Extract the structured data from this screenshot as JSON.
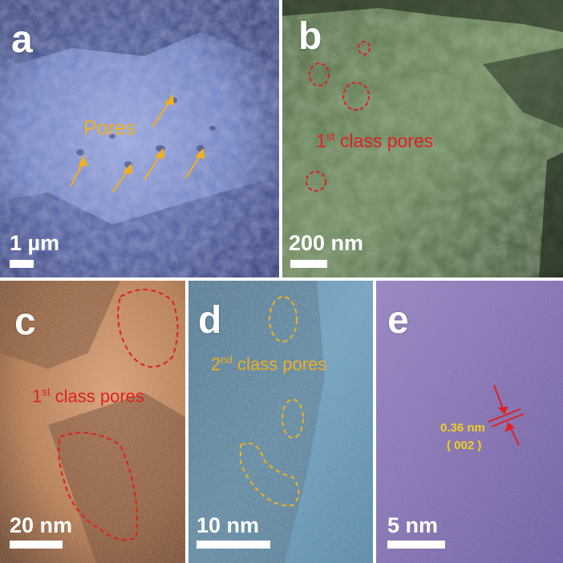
{
  "colors": {
    "sem_blue": "#7f8fc8",
    "tem_green": "#5f7a52",
    "tem_orange": "#c08a62",
    "tem_cyan": "#6b9cb8",
    "tem_purple": "#8a72b6",
    "arrow_orange": "#f0b020",
    "pore_red": "#e02020",
    "label_yellow": "#f0d020"
  },
  "panels": {
    "a": {
      "letter": "a",
      "annotation": "Pores",
      "scale": "1 µm"
    },
    "b": {
      "letter": "b",
      "annotation_pre": "1",
      "annotation_sup": "st",
      "annotation_post": " class pores",
      "scale": "200 nm"
    },
    "c": {
      "letter": "c",
      "annotation_pre": "1",
      "annotation_sup": "st",
      "annotation_post": " class pores",
      "scale": "20 nm"
    },
    "d": {
      "letter": "d",
      "annotation_pre": "2",
      "annotation_sup": "nd",
      "annotation_post": " class pores",
      "scale": "10 nm"
    },
    "e": {
      "letter": "e",
      "spacing": "0.36 nm",
      "plane": "( 002 )",
      "scale": "5 nm"
    }
  }
}
